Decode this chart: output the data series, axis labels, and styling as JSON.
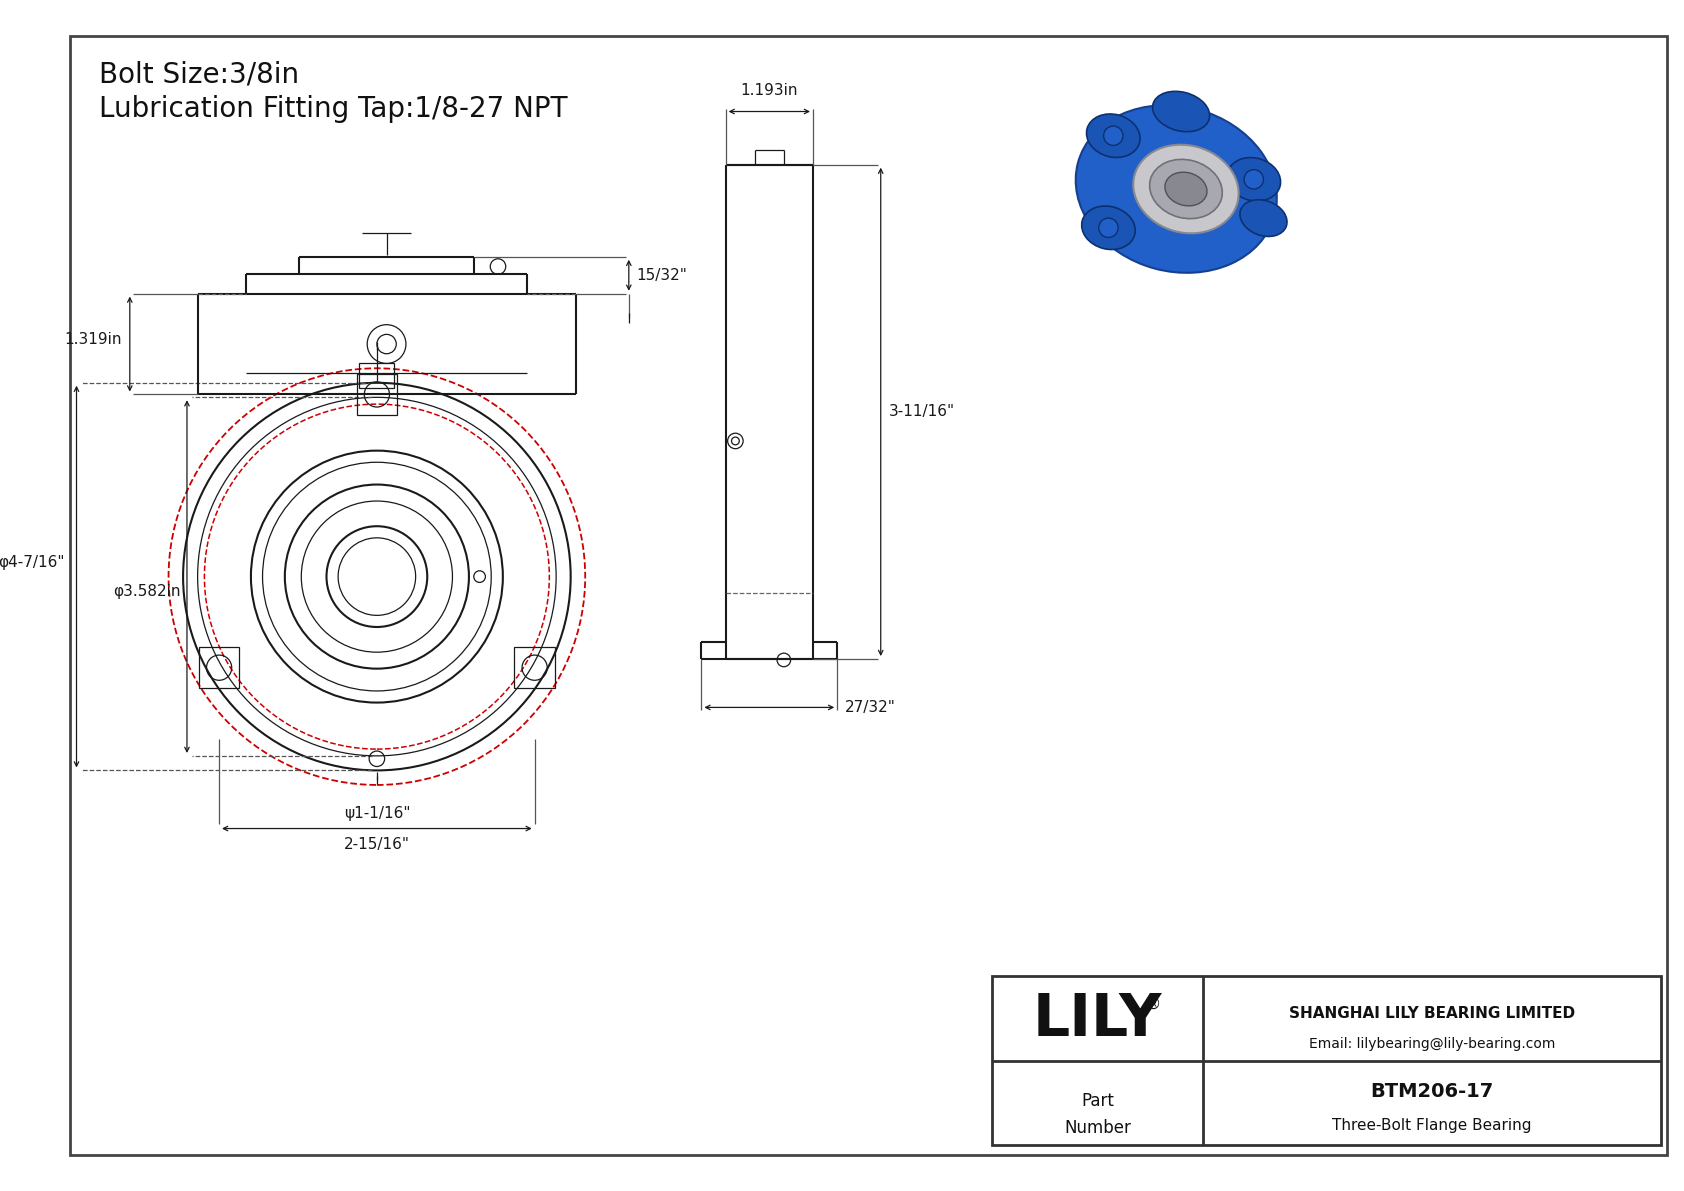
{
  "bg_color": "#ffffff",
  "line_color": "#1a1a1a",
  "dim_color": "#1a1a1a",
  "red_color": "#cc0000",
  "title_line1": "Bolt Size:3/8in",
  "title_line2": "Lubrication Fitting Tap:1/8-27 NPT",
  "title_fontsize": 20,
  "dim_fontsize": 11,
  "logo_text": "LILY",
  "logo_registered": "®",
  "company_name": "SHANGHAI LILY BEARING LIMITED",
  "company_email": "Email: lilybearing@lily-bearing.com",
  "part_label": "Part\nNumber",
  "part_number": "BTM206-17",
  "part_desc": "Three-Bolt Flange Bearing",
  "dim_phi_large": "φ4-7/16\"",
  "dim_phi_medium": "φ3.582in",
  "dim_phi_bolt": "ψ1-1/16\"",
  "dim_width": "2-15/16\"",
  "dim_height_right": "3-11/16\"",
  "dim_width_right": "1.193in",
  "dim_bot_right": "27/32\"",
  "dim_15_32": "15/32\"",
  "dim_1319": "1.319in"
}
